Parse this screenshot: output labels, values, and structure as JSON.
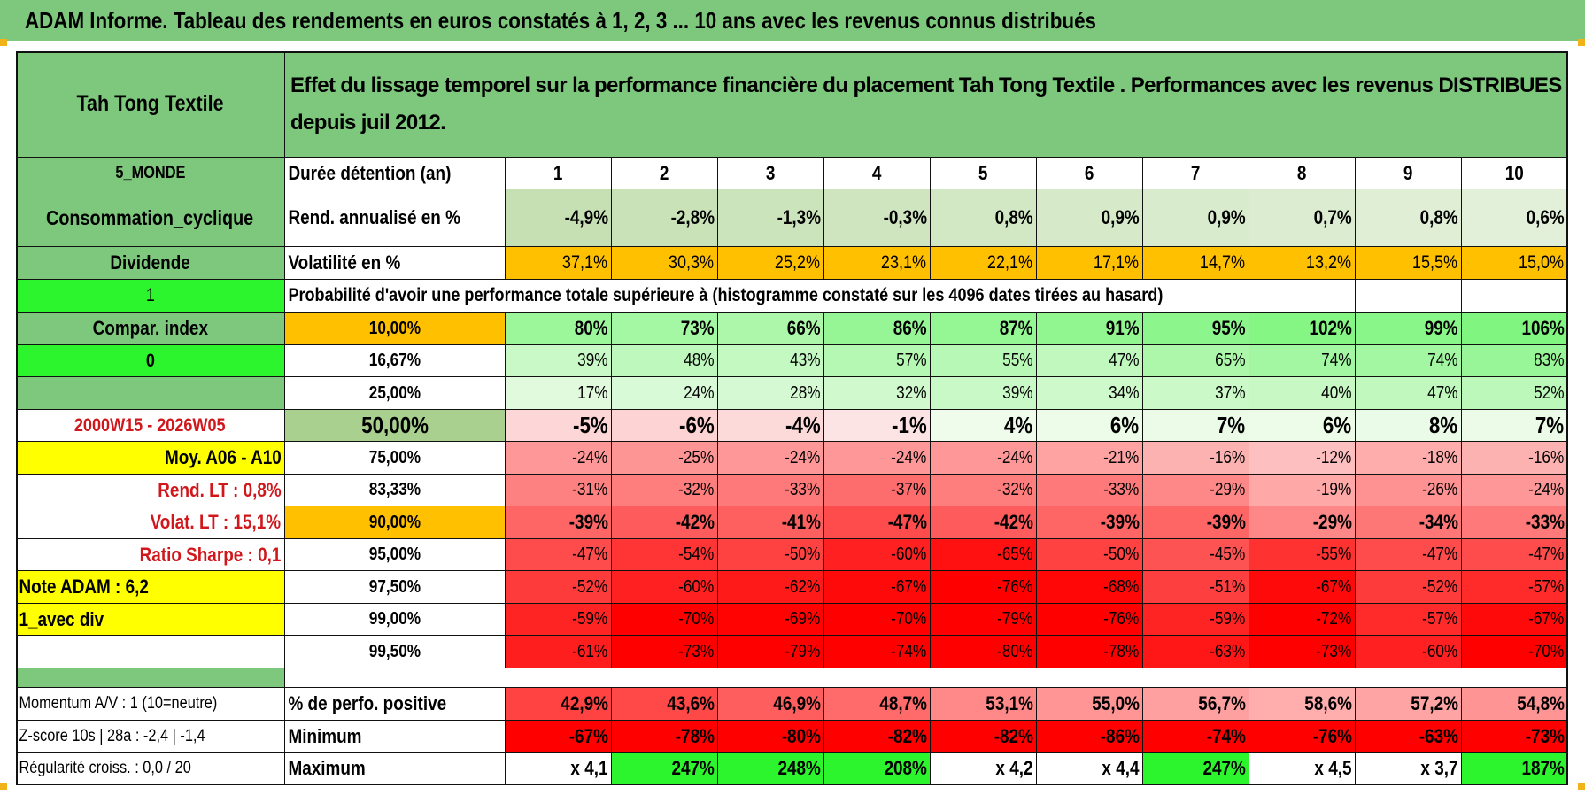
{
  "title": "ADAM Informe. Tableau des rendements en euros constatés à 1, 2, 3 ... 10 ans avec les revenus connus distribués",
  "fund_name": "Tah Tong Textile",
  "description": "Effet du lissage temporel sur la performance financière du placement Tah Tong Textile . Performances avec les revenus DISTRIBUES depuis juil 2012.",
  "left_panel": {
    "zone": "5_MONDE",
    "sector": "Consommation_cyclique",
    "income": "Dividende",
    "flag1": "1",
    "compar_index": "Compar. index",
    "flag0": "0",
    "period": "2000W15 - 2026W05",
    "moy": "Moy. A06 - A10",
    "rend_lt": "Rend. LT :   0,8%",
    "volat_lt": "Volat. LT :   15,1%",
    "sharpe": "Ratio Sharpe :   0,1",
    "note": "Note ADAM : 6,2",
    "div_mode": "1_avec div",
    "momentum": "Momentum A/V : 1 (10=neutre)",
    "zscore": "Z-score 10s | 28a : -2,4 | -1,4",
    "regularite": "Régularité croiss. : 0,0 / 20"
  },
  "row_labels": {
    "duration": "Durée détention (an)",
    "rend": "Rend. annualisé en %",
    "volat": "Volatilité en %",
    "prob_title": "Probabilité d'avoir une performance totale supérieure à (histogramme constaté sur les 4096 dates tirées au hasard)",
    "positive": "% de perfo. positive",
    "minimum": "Minimum",
    "maximum": "Maximum"
  },
  "years": [
    "1",
    "2",
    "3",
    "4",
    "5",
    "6",
    "7",
    "8",
    "9",
    "10"
  ],
  "rend": [
    "-4,9%",
    "-2,8%",
    "-1,3%",
    "-0,3%",
    "0,8%",
    "0,9%",
    "0,9%",
    "0,7%",
    "0,8%",
    "0,6%"
  ],
  "volat": [
    "37,1%",
    "30,3%",
    "25,2%",
    "23,1%",
    "22,1%",
    "17,1%",
    "14,7%",
    "13,2%",
    "15,5%",
    "15,0%"
  ],
  "prob_rows": [
    {
      "pct": "10,00%",
      "values": [
        "80%",
        "73%",
        "66%",
        "86%",
        "87%",
        "91%",
        "95%",
        "102%",
        "99%",
        "106%"
      ]
    },
    {
      "pct": "16,67%",
      "values": [
        "39%",
        "48%",
        "43%",
        "57%",
        "55%",
        "47%",
        "65%",
        "74%",
        "74%",
        "83%"
      ]
    },
    {
      "pct": "25,00%",
      "values": [
        "17%",
        "24%",
        "28%",
        "32%",
        "39%",
        "34%",
        "37%",
        "40%",
        "47%",
        "52%"
      ]
    },
    {
      "pct": "50,00%",
      "values": [
        "-5%",
        "-6%",
        "-4%",
        "-1%",
        "4%",
        "6%",
        "7%",
        "6%",
        "8%",
        "7%"
      ]
    },
    {
      "pct": "75,00%",
      "values": [
        "-24%",
        "-25%",
        "-24%",
        "-24%",
        "-24%",
        "-21%",
        "-16%",
        "-12%",
        "-18%",
        "-16%"
      ]
    },
    {
      "pct": "83,33%",
      "values": [
        "-31%",
        "-32%",
        "-33%",
        "-37%",
        "-32%",
        "-33%",
        "-29%",
        "-19%",
        "-26%",
        "-24%"
      ]
    },
    {
      "pct": "90,00%",
      "values": [
        "-39%",
        "-42%",
        "-41%",
        "-47%",
        "-42%",
        "-39%",
        "-39%",
        "-29%",
        "-34%",
        "-33%"
      ]
    },
    {
      "pct": "95,00%",
      "values": [
        "-47%",
        "-54%",
        "-50%",
        "-60%",
        "-65%",
        "-50%",
        "-45%",
        "-55%",
        "-47%",
        "-47%"
      ]
    },
    {
      "pct": "97,50%",
      "values": [
        "-52%",
        "-60%",
        "-62%",
        "-67%",
        "-76%",
        "-68%",
        "-51%",
        "-67%",
        "-52%",
        "-57%"
      ]
    },
    {
      "pct": "99,00%",
      "values": [
        "-59%",
        "-70%",
        "-69%",
        "-70%",
        "-79%",
        "-76%",
        "-59%",
        "-72%",
        "-57%",
        "-67%"
      ]
    },
    {
      "pct": "99,50%",
      "values": [
        "-61%",
        "-73%",
        "-79%",
        "-74%",
        "-80%",
        "-78%",
        "-63%",
        "-73%",
        "-60%",
        "-70%"
      ]
    }
  ],
  "positive": [
    "42,9%",
    "43,6%",
    "46,9%",
    "48,7%",
    "53,1%",
    "55,0%",
    "56,7%",
    "58,6%",
    "57,2%",
    "54,8%"
  ],
  "minimum": [
    "-67%",
    "-78%",
    "-80%",
    "-82%",
    "-82%",
    "-86%",
    "-74%",
    "-76%",
    "-63%",
    "-73%"
  ],
  "maximum": [
    "x 4,1",
    "247%",
    "248%",
    "208%",
    "x 4,2",
    "x 4,4",
    "247%",
    "x 4,5",
    "x 3,7",
    "187%"
  ],
  "colors": {
    "header_green": "#7dc87d",
    "bright_green": "#2df52d",
    "orange": "#ffc000",
    "yellow": "#ffff00",
    "red": "#ff0000",
    "label_red": "#d0181c"
  }
}
